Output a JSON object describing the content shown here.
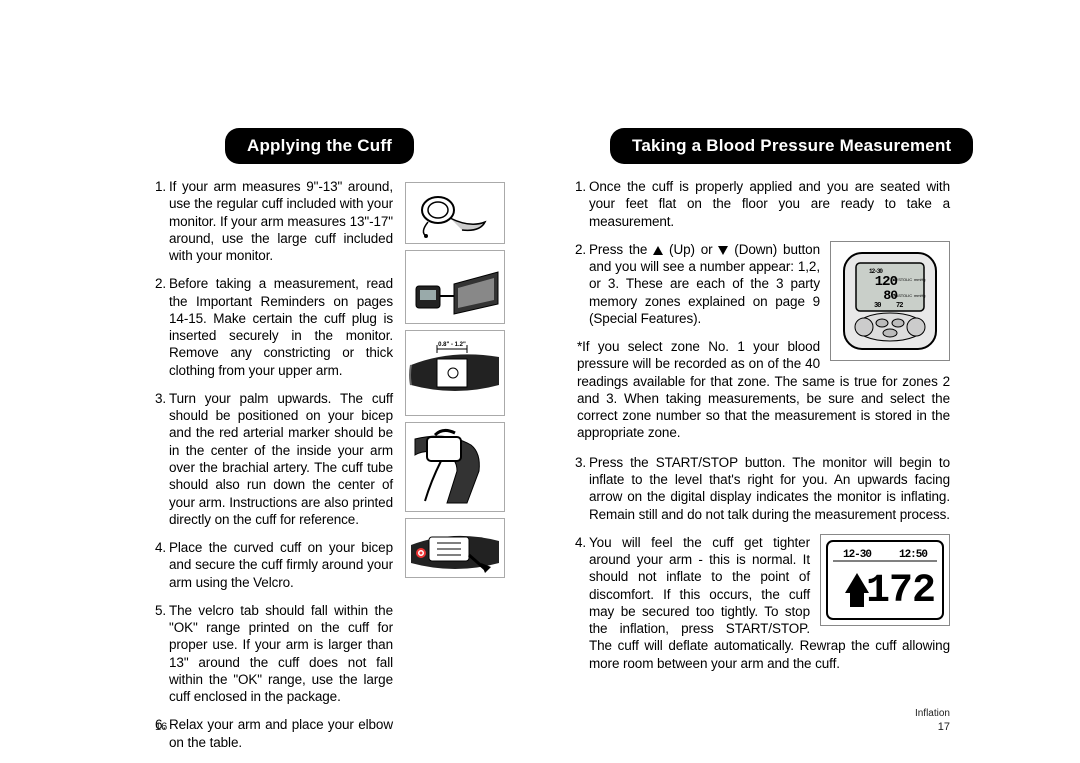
{
  "left": {
    "header": "Applying the Cuff",
    "page_num": "16",
    "steps": [
      "If your arm measures 9\"-13\" around, use the regular cuff included with your monitor. If your arm measures 13\"-17\" around, use the large cuff included with your monitor.",
      "Before taking a measurement, read the Important Reminders on pages 14-15. Make certain the cuff plug is inserted securely in the monitor. Remove any constricting or thick clothing from your upper arm.",
      "Turn your palm upwards. The cuff should be positioned on your bicep and the red arterial marker should be in the center of the inside your arm over the brachial artery. The cuff tube should also run down the center of your arm. Instructions are also printed directly on the cuff for reference.",
      "Place the curved cuff on your bicep and secure the cuff firmly around your arm using the Velcro.",
      "The velcro tab should fall within the \"OK\" range printed on the cuff for proper use. If your arm is larger than 13\" around the cuff does not fall within the \"OK\" range, use the large cuff enclosed in the package.",
      "Relax your arm and place your elbow on the table."
    ],
    "illus_label": "0.8\" - 1.2\""
  },
  "right": {
    "header": "Taking a Blood Pressure Measurement",
    "page_num": "17",
    "steps_a": [
      "Once the cuff is properly applied and you are seated with your feet flat on the floor you are ready to take a measurement."
    ],
    "step2_pre": "Press the ",
    "step2_up": " (Up) or ",
    "step2_dn": " (Down) button and you will see a number appear: 1,2, or 3. These are each of the 3 party memory zones explained on page 9 (Special Features).",
    "note": "*If you select zone No. 1 your blood pressure will be recorded as on of the 40 readings available for that zone. The same is true for zones 2 and 3. When taking measurements, be sure and select the correct zone number so that the measurement is stored in the appropriate zone.",
    "steps_b": [
      "Press the START/STOP button. The monitor will begin to inflate to the level that's right for you. An upwards facing arrow on the digital display indicates the monitor is inflating. Remain still and do not talk during the measurement process.",
      "You will feel the cuff get tighter around your arm - this is normal. It should not inflate to the point of discomfort. If this occurs, the cuff may be secured too tightly. To stop the inflation, press START/STOP. The cuff will deflate automatically. Rewrap the cuff allowing more room between your arm and the cuff."
    ],
    "display1": {
      "date": "12-30",
      "sys_label": "SYSTOLIC",
      "sys": "120",
      "dia_label": "DIASTOLIC",
      "dia": "80",
      "pulse": "72",
      "misc": "30"
    },
    "display2": {
      "date": "12-30",
      "time": "12:50",
      "value": "172"
    },
    "inflation_label": "Inflation"
  },
  "colors": {
    "pill_bg": "#000000",
    "pill_fg": "#ffffff",
    "text": "#000000",
    "page_bg": "#ffffff"
  }
}
